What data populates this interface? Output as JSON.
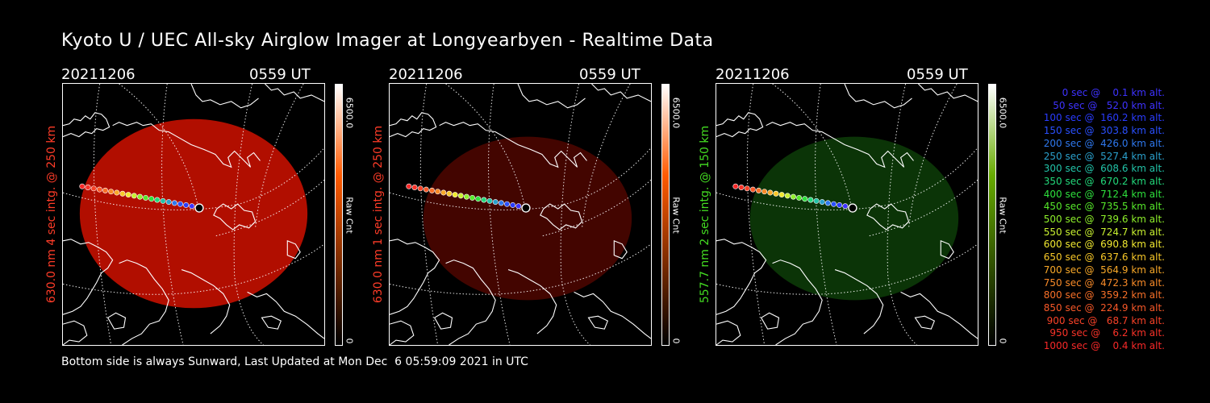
{
  "title": "Kyoto U / UEC All-sky Airglow Imager at Longyearbyen - Realtime Data",
  "footer": "Bottom side is always Sunward, Last Updated at Mon Dec  6 05:59:09 2021 in UTC",
  "panels": [
    {
      "date": "20211206",
      "time": "0559 UT",
      "ylabel": "630.0 nm 4 sec intg. @ 250 km",
      "label_color": "#ff3c28",
      "cbar_max": "6500.0",
      "cbar_min": "0",
      "cbar_label": "Raw Cnt",
      "cbar_color": "#ff5a00",
      "fill": "#d01000",
      "fill_opacity": 0.85
    },
    {
      "date": "20211206",
      "time": "0559 UT",
      "ylabel": "630.0 nm 1 sec intg. @ 250 km",
      "label_color": "#ff3c28",
      "cbar_max": "6500.0",
      "cbar_min": "0",
      "cbar_label": "Raw Cnt",
      "cbar_color": "#ff5a00",
      "fill": "#4a0600",
      "fill_opacity": 0.9
    },
    {
      "date": "20211206",
      "time": "0559 UT",
      "ylabel": "557.7 nm 2 sec intg. @ 150 km",
      "label_color": "#44dd22",
      "cbar_max": "6500.0",
      "cbar_min": "0",
      "cbar_label": "Raw Cnt",
      "cbar_color": "#66aa00",
      "fill": "#0c3a08",
      "fill_opacity": 0.9
    }
  ],
  "legend": [
    {
      "text": "   0 sec @    0.1 km alt.",
      "color": "#3e32ff"
    },
    {
      "text": "  50 sec @   52.0 km alt.",
      "color": "#3e32ff"
    },
    {
      "text": " 100 sec @  160.2 km alt.",
      "color": "#2a3cff"
    },
    {
      "text": " 150 sec @  303.8 km alt.",
      "color": "#2a50ff"
    },
    {
      "text": " 200 sec @  426.0 km alt.",
      "color": "#2e78ee"
    },
    {
      "text": " 250 sec @  527.4 km alt.",
      "color": "#2aa0cc"
    },
    {
      "text": " 300 sec @  608.6 km alt.",
      "color": "#22c3a8"
    },
    {
      "text": " 350 sec @  670.2 km alt.",
      "color": "#22d87a"
    },
    {
      "text": " 400 sec @  712.4 km alt.",
      "color": "#2ee03c"
    },
    {
      "text": " 450 sec @  735.5 km alt.",
      "color": "#56e82a"
    },
    {
      "text": " 500 sec @  739.6 km alt.",
      "color": "#8ef02a"
    },
    {
      "text": " 550 sec @  724.7 km alt.",
      "color": "#c8f030"
    },
    {
      "text": " 600 sec @  690.8 km alt.",
      "color": "#f0e830"
    },
    {
      "text": " 650 sec @  637.6 km alt.",
      "color": "#f8c828"
    },
    {
      "text": " 700 sec @  564.9 km alt.",
      "color": "#f8a828"
    },
    {
      "text": " 750 sec @  472.3 km alt.",
      "color": "#f88a28"
    },
    {
      "text": " 800 sec @  359.2 km alt.",
      "color": "#f87028"
    },
    {
      "text": " 850 sec @  224.9 km alt.",
      "color": "#f85828"
    },
    {
      "text": " 900 sec @   68.7 km alt.",
      "color": "#f84228"
    },
    {
      "text": " 950 sec @    6.2 km alt.",
      "color": "#f83228"
    },
    {
      "text": "1000 sec @    0.4 km alt.",
      "color": "#f82828"
    }
  ]
}
